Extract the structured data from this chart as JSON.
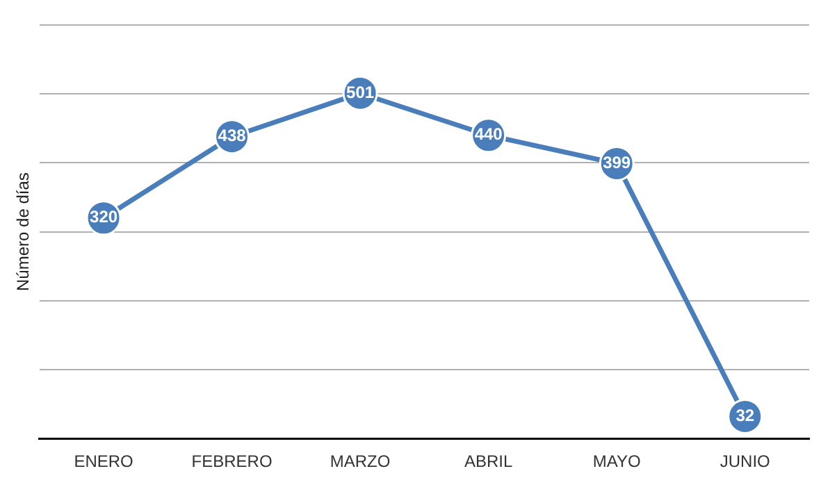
{
  "chart_data": {
    "type": "line",
    "ylabel": "Número de días",
    "categories": [
      "ENERO",
      "FEBRERO",
      "MARZO",
      "ABRIL",
      "MAYO",
      "JUNIO"
    ],
    "series": [
      {
        "color": "#4a7ebb",
        "values": [
          320,
          438,
          501,
          440,
          399,
          32
        ]
      }
    ],
    "ylim": [
      0,
      600
    ],
    "yticks": [
      {
        "value": 0,
        "label": null
      },
      {
        "value": 100,
        "label": null
      },
      {
        "value": 200,
        "label": null
      },
      {
        "value": 300,
        "label": null
      },
      {
        "value": 400,
        "label": null
      },
      {
        "value": 500,
        "label": null
      },
      {
        "value": 600,
        "label": null
      }
    ],
    "grid": "y",
    "marker": "circle",
    "data_labels": true,
    "tick_labels": "x"
  }
}
